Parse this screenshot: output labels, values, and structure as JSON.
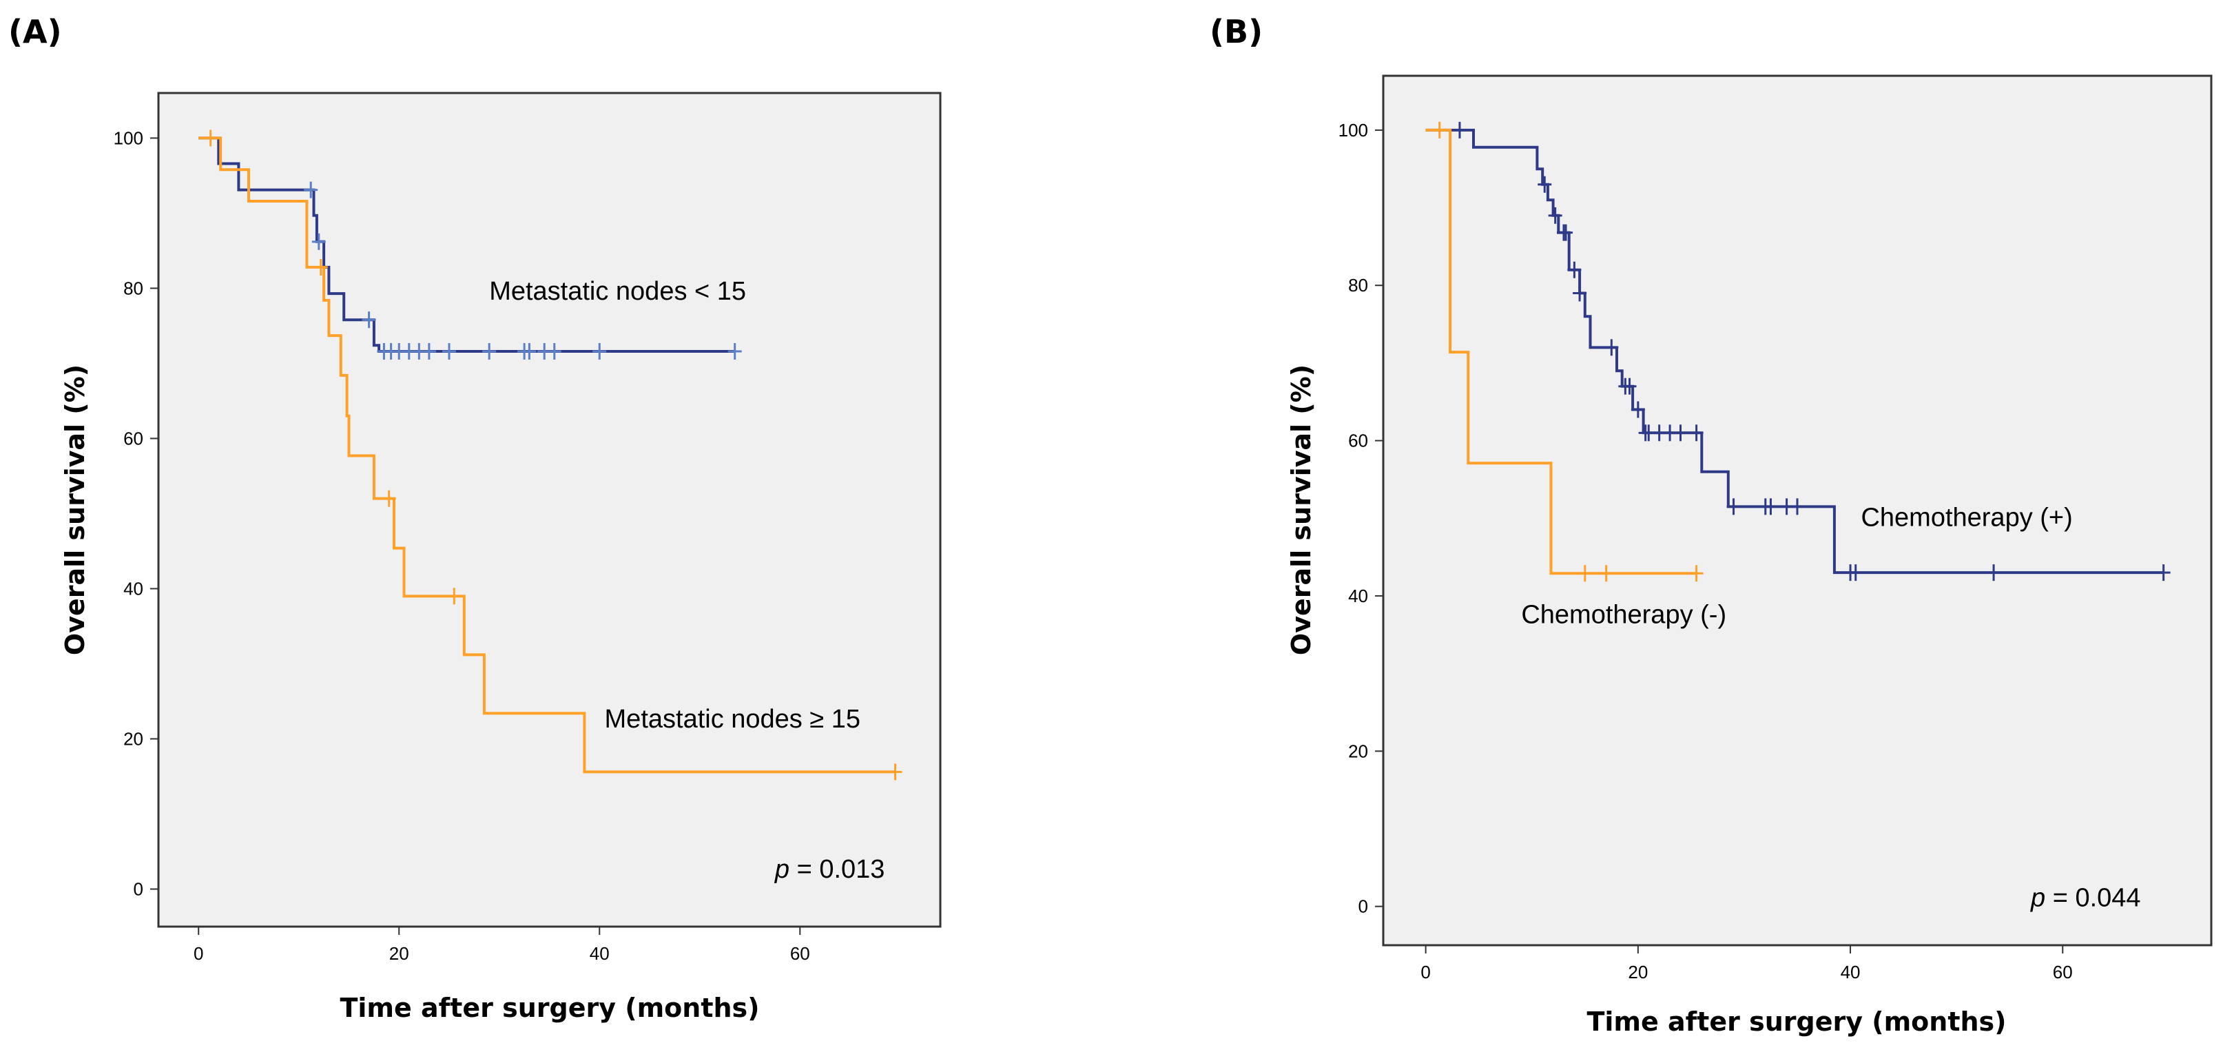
{
  "colors": {
    "navy": "#2e3a87",
    "orange": "#ffa028",
    "plot_bg": "#f0f0f0",
    "frame": "#333333"
  },
  "chart_data": [
    {
      "type": "line",
      "subtype": "kaplan-meier",
      "panel_label": "(A)",
      "xlabel": "Time after surgery (months)",
      "ylabel": "Overall survival (%)",
      "xlim": [
        -4,
        74
      ],
      "ylim": [
        -5,
        106
      ],
      "xticks": [
        0,
        20,
        40,
        60
      ],
      "yticks": [
        0,
        20,
        40,
        60,
        80,
        100
      ],
      "p_prefix": "p",
      "p_value": " = 0.013",
      "series": [
        {
          "name": "Metastatic nodes < 15",
          "color": "#2e3a87",
          "steps": [
            [
              0,
              100
            ],
            [
              2,
              100
            ],
            [
              2,
              96.6
            ],
            [
              4,
              96.6
            ],
            [
              4,
              93.1
            ],
            [
              11.5,
              93.1
            ],
            [
              11.5,
              89.7
            ],
            [
              11.8,
              89.7
            ],
            [
              11.8,
              86.2
            ],
            [
              12.5,
              86.2
            ],
            [
              12.5,
              82.8
            ],
            [
              13,
              82.8
            ],
            [
              13,
              79.3
            ],
            [
              14.5,
              79.3
            ],
            [
              14.5,
              75.8
            ],
            [
              17.5,
              75.8
            ],
            [
              17.5,
              72.4
            ],
            [
              18,
              72.4
            ],
            [
              18,
              71.6
            ],
            [
              53.5,
              71.6
            ]
          ],
          "censor_x": [
            11.2,
            12.0,
            17.0,
            18.5,
            19.2,
            20.0,
            21.0,
            22.0,
            23.0,
            25.0,
            29.0,
            32.5,
            33.0,
            34.5,
            35.5,
            40.0,
            53.5
          ],
          "censor_color": "#5b7fc7"
        },
        {
          "name": "Metastatic nodes ≥ 15",
          "color": "#ffa028",
          "steps": [
            [
              0,
              100
            ],
            [
              2.2,
              100
            ],
            [
              2.2,
              95.8
            ],
            [
              5,
              95.8
            ],
            [
              5,
              91.6
            ],
            [
              10.8,
              91.6
            ],
            [
              10.8,
              82.8
            ],
            [
              12.5,
              82.8
            ],
            [
              12.5,
              78.4
            ],
            [
              13,
              78.4
            ],
            [
              13,
              73.7
            ],
            [
              14.2,
              73.7
            ],
            [
              14.2,
              68.4
            ],
            [
              14.8,
              68.4
            ],
            [
              14.8,
              63
            ],
            [
              15,
              63
            ],
            [
              15,
              57.7
            ],
            [
              17.5,
              57.7
            ],
            [
              17.5,
              52
            ],
            [
              19.5,
              52
            ],
            [
              19.5,
              45.4
            ],
            [
              20.5,
              45.4
            ],
            [
              20.5,
              39
            ],
            [
              26.5,
              39
            ],
            [
              26.5,
              31.2
            ],
            [
              28.5,
              31.2
            ],
            [
              28.5,
              23.4
            ],
            [
              38.5,
              23.4
            ],
            [
              38.5,
              15.6
            ],
            [
              69.5,
              15.6
            ]
          ],
          "censor_x": [
            1.2,
            12.2,
            19.0,
            25.5,
            69.5
          ],
          "censor_color": "#ffa028"
        }
      ],
      "annotations": [
        {
          "text": "Metastatic nodes < 15",
          "x": 29,
          "y": 78.5
        },
        {
          "text": "Metastatic nodes ≥ 15",
          "x": 40.5,
          "y": 21.5
        }
      ],
      "p_at": {
        "x": 57.5,
        "y": 1.5
      }
    },
    {
      "type": "line",
      "subtype": "kaplan-meier",
      "panel_label": "(B)",
      "xlabel": "Time after surgery (months)",
      "ylabel": "Overall survival (%)",
      "xlim": [
        -4,
        74
      ],
      "ylim": [
        -5,
        107
      ],
      "xticks": [
        0,
        20,
        40,
        60
      ],
      "yticks": [
        0,
        20,
        40,
        60,
        80,
        100
      ],
      "p_prefix": "p",
      "p_value": " = 0.044",
      "series": [
        {
          "name": "Chemotherapy (+)",
          "color": "#2e3a87",
          "steps": [
            [
              0,
              100
            ],
            [
              4.5,
              100
            ],
            [
              4.5,
              97.8
            ],
            [
              10.5,
              97.8
            ],
            [
              10.5,
              95
            ],
            [
              11,
              95
            ],
            [
              11,
              93
            ],
            [
              11.5,
              93
            ],
            [
              11.5,
              91
            ],
            [
              12,
              91
            ],
            [
              12,
              89
            ],
            [
              12.5,
              89
            ],
            [
              12.5,
              86.8
            ],
            [
              13.5,
              86.8
            ],
            [
              13.5,
              82
            ],
            [
              14.5,
              82
            ],
            [
              14.5,
              79
            ],
            [
              15,
              79
            ],
            [
              15,
              76
            ],
            [
              15.5,
              76
            ],
            [
              15.5,
              72
            ],
            [
              18,
              72
            ],
            [
              18,
              69
            ],
            [
              18.5,
              69
            ],
            [
              18.5,
              67
            ],
            [
              19.5,
              67
            ],
            [
              19.5,
              64
            ],
            [
              20.5,
              64
            ],
            [
              20.5,
              61
            ],
            [
              26,
              61
            ],
            [
              26,
              56
            ],
            [
              28.5,
              56
            ],
            [
              28.5,
              51.5
            ],
            [
              38.5,
              51.5
            ],
            [
              38.5,
              43
            ],
            [
              69.5,
              43
            ]
          ],
          "censor_x": [
            3.2,
            11.2,
            12.2,
            13.0,
            13.2,
            14.0,
            14.5,
            17.5,
            18.8,
            19.2,
            20.0,
            20.7,
            21.0,
            22.0,
            23.0,
            24.0,
            25.5,
            29.0,
            32.0,
            32.5,
            34.0,
            35.0,
            40.0,
            40.5,
            53.5,
            69.5
          ],
          "censor_color": "#2e3a87"
        },
        {
          "name": "Chemotherapy (-)",
          "color": "#ffa028",
          "steps": [
            [
              0,
              100
            ],
            [
              2.3,
              100
            ],
            [
              2.3,
              71.4
            ],
            [
              4,
              71.4
            ],
            [
              4,
              57.1
            ],
            [
              11.8,
              57.1
            ],
            [
              11.8,
              42.9
            ],
            [
              25.5,
              42.9
            ]
          ],
          "censor_x": [
            1.3,
            15.0,
            17.0,
            25.5
          ],
          "censor_color": "#ffa028"
        }
      ],
      "annotations": [
        {
          "text": "Chemotherapy (+)",
          "x": 41,
          "y": 49
        },
        {
          "text": "Chemotherapy (-)",
          "x": 9,
          "y": 36.5
        }
      ],
      "p_at": {
        "x": 57,
        "y": 0
      }
    }
  ]
}
